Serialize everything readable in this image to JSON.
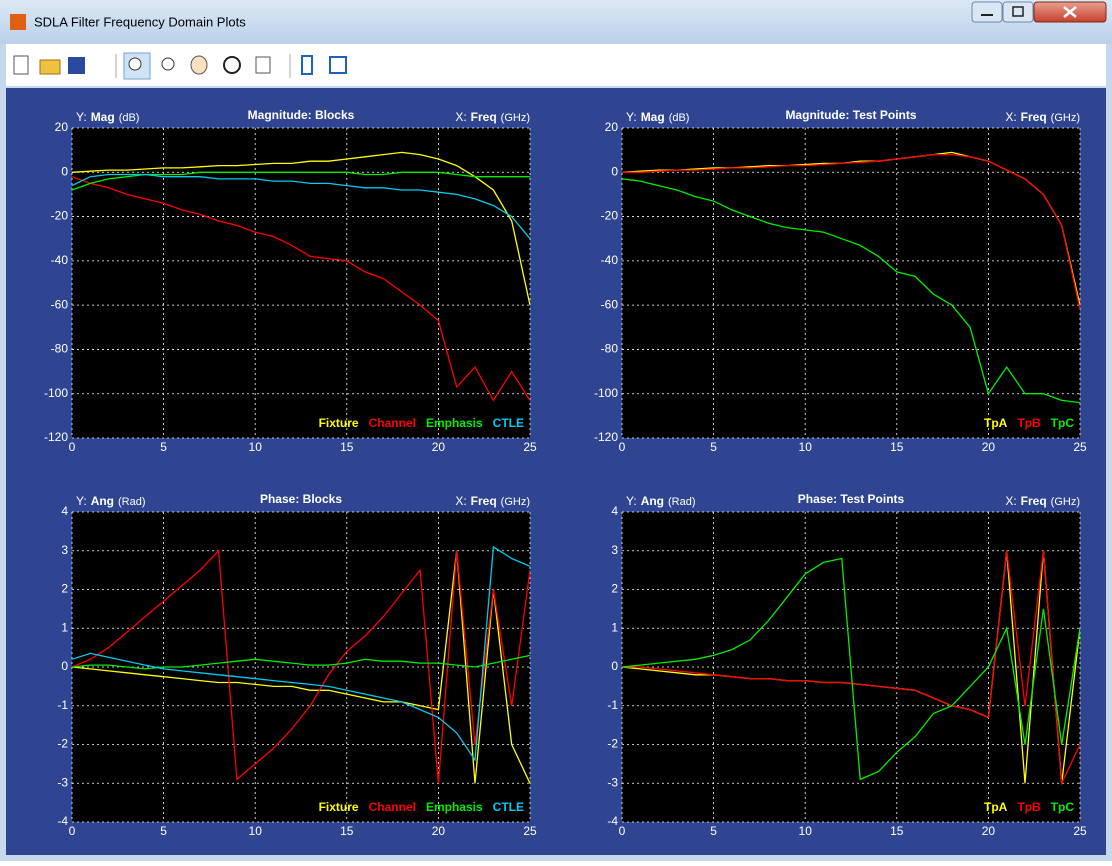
{
  "window": {
    "title": "SDLA Filter Frequency Domain Plots"
  },
  "chart_data": [
    {
      "type": "line",
      "title": "Magnitude: Blocks",
      "ylabel": {
        "prefix": "Y:",
        "name": "Mag",
        "unit": "(dB)"
      },
      "xlabel": {
        "prefix": "X:",
        "name": "Freq",
        "unit": "(GHz)"
      },
      "x": [
        0,
        1,
        2,
        3,
        4,
        5,
        6,
        7,
        8,
        9,
        10,
        11,
        12,
        13,
        14,
        15,
        16,
        17,
        18,
        19,
        20,
        21,
        22,
        23,
        24,
        25
      ],
      "xlim": [
        0,
        25
      ],
      "xticks": [
        0,
        5,
        10,
        15,
        20,
        25
      ],
      "ylim": [
        -120,
        20
      ],
      "yticks": [
        -120,
        -100,
        -80,
        -60,
        -40,
        -20,
        0,
        20
      ],
      "grid": true,
      "legend": "lower right",
      "series": [
        {
          "name": "Fixture",
          "color": "#ffff00",
          "values": [
            0,
            0.5,
            1,
            1,
            1.5,
            2,
            2,
            2.5,
            3,
            3,
            3.5,
            4,
            4,
            5,
            5,
            6,
            7,
            8,
            9,
            8,
            6,
            3,
            -2,
            -8,
            -22,
            -60
          ]
        },
        {
          "name": "Channel",
          "color": "#ff0000",
          "values": [
            -2,
            -5,
            -7,
            -10,
            -12,
            -14,
            -17,
            -19,
            -22,
            -24,
            -27,
            -29,
            -33,
            -38,
            -39,
            -40,
            -45,
            -48,
            -54,
            -60,
            -67,
            -97,
            -88,
            -103,
            -90,
            -103
          ]
        },
        {
          "name": "Emphasis",
          "color": "#00ee00",
          "values": [
            -8,
            -5,
            -3,
            -2,
            -1,
            -1,
            -1,
            0,
            0,
            0,
            0,
            0,
            0,
            0,
            0,
            0,
            -1,
            -1,
            0,
            0,
            0,
            -1,
            -2,
            -2,
            -2,
            -2
          ]
        },
        {
          "name": "CTLE",
          "color": "#00ccee",
          "values": [
            -6,
            -2,
            -1,
            -1,
            -1,
            -2,
            -2,
            -2,
            -3,
            -3,
            -3,
            -4,
            -4,
            -5,
            -5,
            -6,
            -7,
            -7,
            -8,
            -8,
            -9,
            -10,
            -12,
            -15,
            -20,
            -30
          ]
        }
      ]
    },
    {
      "type": "line",
      "title": "Magnitude: Test Points",
      "ylabel": {
        "prefix": "Y:",
        "name": "Mag",
        "unit": "(dB)"
      },
      "xlabel": {
        "prefix": "X:",
        "name": "Freq",
        "unit": "(GHz)"
      },
      "x": [
        0,
        1,
        2,
        3,
        4,
        5,
        6,
        7,
        8,
        9,
        10,
        11,
        12,
        13,
        14,
        15,
        16,
        17,
        18,
        19,
        20,
        21,
        22,
        23,
        24,
        25
      ],
      "xlim": [
        0,
        25
      ],
      "xticks": [
        0,
        5,
        10,
        15,
        20,
        25
      ],
      "ylim": [
        -120,
        20
      ],
      "yticks": [
        -120,
        -100,
        -80,
        -60,
        -40,
        -20,
        0,
        20
      ],
      "grid": true,
      "legend": "lower right",
      "series": [
        {
          "name": "TpA",
          "color": "#ffff00",
          "values": [
            0,
            0.5,
            1,
            1,
            1.5,
            2,
            2,
            2.5,
            3,
            3,
            3.5,
            4,
            4,
            5,
            5,
            6,
            7,
            8,
            9,
            7,
            5,
            1,
            -3,
            -10,
            -24,
            -60
          ]
        },
        {
          "name": "TpB",
          "color": "#ff0000",
          "values": [
            0,
            0,
            0.5,
            1,
            1,
            1.5,
            2,
            2,
            2.5,
            3,
            3,
            3.5,
            4,
            4.5,
            5,
            6,
            7,
            8,
            8,
            7,
            5,
            1,
            -3,
            -10,
            -24,
            -62
          ]
        },
        {
          "name": "TpC",
          "color": "#00ee00",
          "values": [
            -3,
            -4,
            -6,
            -8,
            -11,
            -13,
            -17,
            -20,
            -23,
            -25,
            -26,
            -27,
            -30,
            -33,
            -38,
            -45,
            -47,
            -55,
            -60,
            -70,
            -100,
            -88,
            -100,
            -100,
            -103,
            -104
          ]
        }
      ]
    },
    {
      "type": "line",
      "title": "Phase: Blocks",
      "ylabel": {
        "prefix": "Y:",
        "name": "Ang",
        "unit": "(Rad)"
      },
      "xlabel": {
        "prefix": "X:",
        "name": "Freq",
        "unit": "(GHz)"
      },
      "x": [
        0,
        1,
        2,
        3,
        4,
        5,
        6,
        7,
        8,
        9,
        10,
        11,
        12,
        13,
        14,
        15,
        16,
        17,
        18,
        19,
        20,
        21,
        22,
        23,
        24,
        25
      ],
      "xlim": [
        0,
        25
      ],
      "xticks": [
        0,
        5,
        10,
        15,
        20,
        25
      ],
      "ylim": [
        -4,
        4
      ],
      "yticks": [
        -4,
        -3,
        -2,
        -1,
        0,
        1,
        2,
        3,
        4
      ],
      "grid": true,
      "legend": "lower right",
      "series": [
        {
          "name": "Fixture",
          "color": "#ffff00",
          "values": [
            0,
            -0.05,
            -0.1,
            -0.15,
            -0.2,
            -0.25,
            -0.3,
            -0.35,
            -0.4,
            -0.4,
            -0.45,
            -0.5,
            -0.5,
            -0.6,
            -0.6,
            -0.7,
            -0.8,
            -0.9,
            -0.9,
            -1,
            -1.1,
            3,
            -3,
            2,
            -2,
            -3
          ]
        },
        {
          "name": "Channel",
          "color": "#ff0000",
          "values": [
            0,
            0.2,
            0.5,
            0.9,
            1.3,
            1.7,
            2.1,
            2.5,
            3,
            -2.9,
            -2.5,
            -2.1,
            -1.6,
            -1,
            -0.2,
            0.4,
            0.8,
            1.3,
            1.9,
            2.5,
            -3,
            3,
            -2,
            2,
            -1,
            2.5
          ]
        },
        {
          "name": "Emphasis",
          "color": "#00ee00",
          "values": [
            0,
            0.05,
            0.05,
            0,
            -0.05,
            0,
            0,
            0.05,
            0.1,
            0.15,
            0.2,
            0.15,
            0.1,
            0.05,
            0.05,
            0.1,
            0.2,
            0.15,
            0.15,
            0.1,
            0.1,
            0.05,
            0,
            0.1,
            0.2,
            0.3
          ]
        },
        {
          "name": "CTLE",
          "color": "#00ccee",
          "values": [
            0.2,
            0.35,
            0.25,
            0.15,
            0.05,
            -0.05,
            -0.1,
            -0.15,
            -0.2,
            -0.25,
            -0.3,
            -0.35,
            -0.4,
            -0.45,
            -0.5,
            -0.6,
            -0.7,
            -0.8,
            -0.9,
            -1.1,
            -1.3,
            -1.7,
            -2.4,
            3.1,
            2.8,
            2.6
          ]
        }
      ]
    },
    {
      "type": "line",
      "title": "Phase: Test Points",
      "ylabel": {
        "prefix": "Y:",
        "name": "Ang",
        "unit": "(Rad)"
      },
      "xlabel": {
        "prefix": "X:",
        "name": "Freq",
        "unit": "(GHz)"
      },
      "x": [
        0,
        1,
        2,
        3,
        4,
        5,
        6,
        7,
        8,
        9,
        10,
        11,
        12,
        13,
        14,
        15,
        16,
        17,
        18,
        19,
        20,
        21,
        22,
        23,
        24,
        25
      ],
      "xlim": [
        0,
        25
      ],
      "xticks": [
        0,
        5,
        10,
        15,
        20,
        25
      ],
      "ylim": [
        -4,
        4
      ],
      "yticks": [
        -4,
        -3,
        -2,
        -1,
        0,
        1,
        2,
        3,
        4
      ],
      "grid": true,
      "legend": "lower right",
      "series": [
        {
          "name": "TpA",
          "color": "#ffff00",
          "values": [
            0,
            -0.05,
            -0.1,
            -0.15,
            -0.2,
            -0.2,
            -0.25,
            -0.3,
            -0.3,
            -0.35,
            -0.35,
            -0.4,
            -0.4,
            -0.45,
            -0.5,
            -0.55,
            -0.6,
            -0.8,
            -1,
            -1.1,
            -1.3,
            3,
            -3,
            3,
            -3,
            1
          ]
        },
        {
          "name": "TpB",
          "color": "#ff0000",
          "values": [
            0,
            0,
            -0.05,
            -0.1,
            -0.15,
            -0.2,
            -0.25,
            -0.3,
            -0.3,
            -0.35,
            -0.35,
            -0.4,
            -0.4,
            -0.45,
            -0.5,
            -0.55,
            -0.6,
            -0.8,
            -1,
            -1.1,
            -1.3,
            3,
            -1,
            3,
            -3,
            -2
          ]
        },
        {
          "name": "TpC",
          "color": "#00ee00",
          "values": [
            0,
            0.05,
            0.1,
            0.15,
            0.2,
            0.3,
            0.45,
            0.7,
            1.2,
            1.8,
            2.4,
            2.7,
            2.8,
            -2.9,
            -2.7,
            -2.2,
            -1.8,
            -1.2,
            -1,
            -0.5,
            0,
            1,
            -2,
            1.5,
            -2,
            1
          ]
        }
      ]
    }
  ]
}
